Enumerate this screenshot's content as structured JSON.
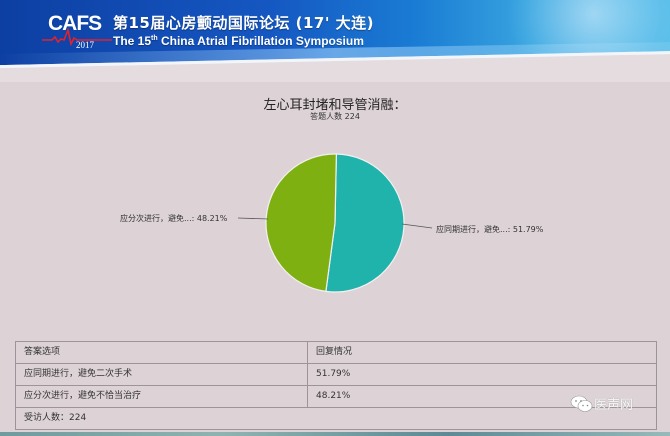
{
  "banner": {
    "logo_text": "CAFS",
    "logo_year": "2017",
    "title_cn": "第15届心房颤动国际论坛 (17' 大连)",
    "title_en_prefix": "The 15",
    "title_en_sup": "th",
    "title_en_suffix": " China Atrial Fibrillation Symposium",
    "colors": {
      "primary": "#1557c2",
      "light": "#5cc0ea"
    }
  },
  "slide": {
    "title": "左心耳封堵和导管消融：",
    "subtitle": "答题人数 224"
  },
  "chart_data": {
    "type": "pie",
    "title": "左心耳封堵和导管消融：",
    "subtitle": "答题人数 224",
    "categories": [
      "应同期进行，避免二次手术",
      "应分次进行，避免不恰当治疗"
    ],
    "values": [
      51.79,
      48.21
    ],
    "labels": [
      "应同期进行，避免...: 51.79%",
      "应分次进行，避免...: 48.21%"
    ],
    "colors": [
      "#1fb3ac",
      "#7fb012"
    ],
    "legend": "none",
    "label_position": "outside with leader lines"
  },
  "table": {
    "headers": [
      "答案选项",
      "回复情况"
    ],
    "rows": [
      [
        "应同期进行，避免二次手术",
        "51.79%"
      ],
      [
        "应分次进行，避免不恰当治疗",
        "48.21%"
      ]
    ],
    "footer": "受访人数：224"
  },
  "watermark": {
    "text": "医声网",
    "icon": "wechat-icon"
  }
}
